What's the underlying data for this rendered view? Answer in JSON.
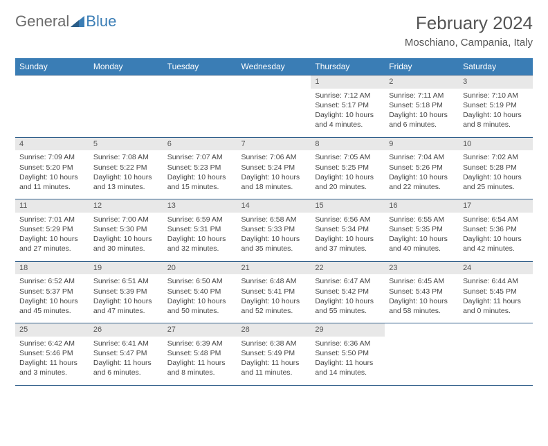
{
  "logo": {
    "part1": "General",
    "part2": "Blue"
  },
  "title": "February 2024",
  "location": "Moschiano, Campania, Italy",
  "colors": {
    "header_bg": "#3a7db5",
    "header_fg": "#ffffff",
    "cell_border": "#2f5e8a",
    "daynum_bg": "#e8e8e8",
    "text": "#444444",
    "logo_gray": "#6b6b6b",
    "logo_blue": "#3a7db5"
  },
  "weekdays": [
    "Sunday",
    "Monday",
    "Tuesday",
    "Wednesday",
    "Thursday",
    "Friday",
    "Saturday"
  ],
  "weeks": [
    {
      "nums": [
        "",
        "",
        "",
        "",
        "1",
        "2",
        "3"
      ],
      "details": [
        "",
        "",
        "",
        "",
        "Sunrise: 7:12 AM\nSunset: 5:17 PM\nDaylight: 10 hours and 4 minutes.",
        "Sunrise: 7:11 AM\nSunset: 5:18 PM\nDaylight: 10 hours and 6 minutes.",
        "Sunrise: 7:10 AM\nSunset: 5:19 PM\nDaylight: 10 hours and 8 minutes."
      ]
    },
    {
      "nums": [
        "4",
        "5",
        "6",
        "7",
        "8",
        "9",
        "10"
      ],
      "details": [
        "Sunrise: 7:09 AM\nSunset: 5:20 PM\nDaylight: 10 hours and 11 minutes.",
        "Sunrise: 7:08 AM\nSunset: 5:22 PM\nDaylight: 10 hours and 13 minutes.",
        "Sunrise: 7:07 AM\nSunset: 5:23 PM\nDaylight: 10 hours and 15 minutes.",
        "Sunrise: 7:06 AM\nSunset: 5:24 PM\nDaylight: 10 hours and 18 minutes.",
        "Sunrise: 7:05 AM\nSunset: 5:25 PM\nDaylight: 10 hours and 20 minutes.",
        "Sunrise: 7:04 AM\nSunset: 5:26 PM\nDaylight: 10 hours and 22 minutes.",
        "Sunrise: 7:02 AM\nSunset: 5:28 PM\nDaylight: 10 hours and 25 minutes."
      ]
    },
    {
      "nums": [
        "11",
        "12",
        "13",
        "14",
        "15",
        "16",
        "17"
      ],
      "details": [
        "Sunrise: 7:01 AM\nSunset: 5:29 PM\nDaylight: 10 hours and 27 minutes.",
        "Sunrise: 7:00 AM\nSunset: 5:30 PM\nDaylight: 10 hours and 30 minutes.",
        "Sunrise: 6:59 AM\nSunset: 5:31 PM\nDaylight: 10 hours and 32 minutes.",
        "Sunrise: 6:58 AM\nSunset: 5:33 PM\nDaylight: 10 hours and 35 minutes.",
        "Sunrise: 6:56 AM\nSunset: 5:34 PM\nDaylight: 10 hours and 37 minutes.",
        "Sunrise: 6:55 AM\nSunset: 5:35 PM\nDaylight: 10 hours and 40 minutes.",
        "Sunrise: 6:54 AM\nSunset: 5:36 PM\nDaylight: 10 hours and 42 minutes."
      ]
    },
    {
      "nums": [
        "18",
        "19",
        "20",
        "21",
        "22",
        "23",
        "24"
      ],
      "details": [
        "Sunrise: 6:52 AM\nSunset: 5:37 PM\nDaylight: 10 hours and 45 minutes.",
        "Sunrise: 6:51 AM\nSunset: 5:39 PM\nDaylight: 10 hours and 47 minutes.",
        "Sunrise: 6:50 AM\nSunset: 5:40 PM\nDaylight: 10 hours and 50 minutes.",
        "Sunrise: 6:48 AM\nSunset: 5:41 PM\nDaylight: 10 hours and 52 minutes.",
        "Sunrise: 6:47 AM\nSunset: 5:42 PM\nDaylight: 10 hours and 55 minutes.",
        "Sunrise: 6:45 AM\nSunset: 5:43 PM\nDaylight: 10 hours and 58 minutes.",
        "Sunrise: 6:44 AM\nSunset: 5:45 PM\nDaylight: 11 hours and 0 minutes."
      ]
    },
    {
      "nums": [
        "25",
        "26",
        "27",
        "28",
        "29",
        "",
        ""
      ],
      "details": [
        "Sunrise: 6:42 AM\nSunset: 5:46 PM\nDaylight: 11 hours and 3 minutes.",
        "Sunrise: 6:41 AM\nSunset: 5:47 PM\nDaylight: 11 hours and 6 minutes.",
        "Sunrise: 6:39 AM\nSunset: 5:48 PM\nDaylight: 11 hours and 8 minutes.",
        "Sunrise: 6:38 AM\nSunset: 5:49 PM\nDaylight: 11 hours and 11 minutes.",
        "Sunrise: 6:36 AM\nSunset: 5:50 PM\nDaylight: 11 hours and 14 minutes.",
        "",
        ""
      ]
    }
  ]
}
